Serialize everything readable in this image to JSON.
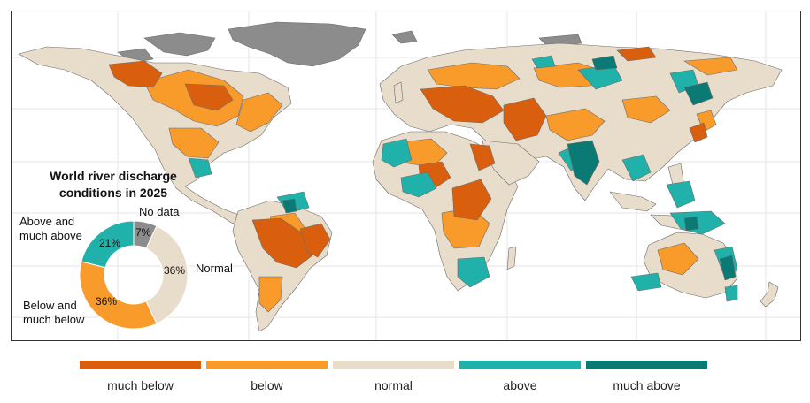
{
  "title": "World river discharge conditions in 2025",
  "title_line1": "World river discharge",
  "title_line2": "conditions in 2025",
  "colors": {
    "much_below": "#d95f0e",
    "below": "#f99b2b",
    "normal": "#e8dccb",
    "above": "#20b2aa",
    "much_above": "#0b7a75",
    "no_data": "#8c8c8c",
    "border": "#6b6b6b"
  },
  "donut": {
    "labels": {
      "no_data": "No data",
      "normal": "Normal",
      "above_line1": "Above and",
      "above_line2": "much above",
      "below_line1": "Below and",
      "below_line2": "much below"
    },
    "percent_labels": {
      "no_data": "7%",
      "normal": "36%",
      "above": "21%",
      "below": "36%"
    }
  },
  "chart_data": {
    "type": "pie",
    "title": "World river discharge conditions in 2025",
    "categories": [
      "No data",
      "Normal",
      "Below and much below",
      "Above and much above"
    ],
    "values": [
      7,
      36,
      36,
      21
    ],
    "colors": [
      "#8c8c8c",
      "#e8dccb",
      "#f99b2b",
      "#20b2aa"
    ],
    "donut": true,
    "unit": "%"
  },
  "legend": {
    "items": [
      {
        "key": "much_below",
        "label": "much below"
      },
      {
        "key": "below",
        "label": "below"
      },
      {
        "key": "normal",
        "label": "normal"
      },
      {
        "key": "above",
        "label": "above"
      },
      {
        "key": "much_above",
        "label": "much above"
      }
    ]
  },
  "map": {
    "layer_names": [
      "no-data-regions",
      "normal-basins",
      "below-basins",
      "much-below-basins",
      "above-basins",
      "much-above-basins"
    ]
  }
}
